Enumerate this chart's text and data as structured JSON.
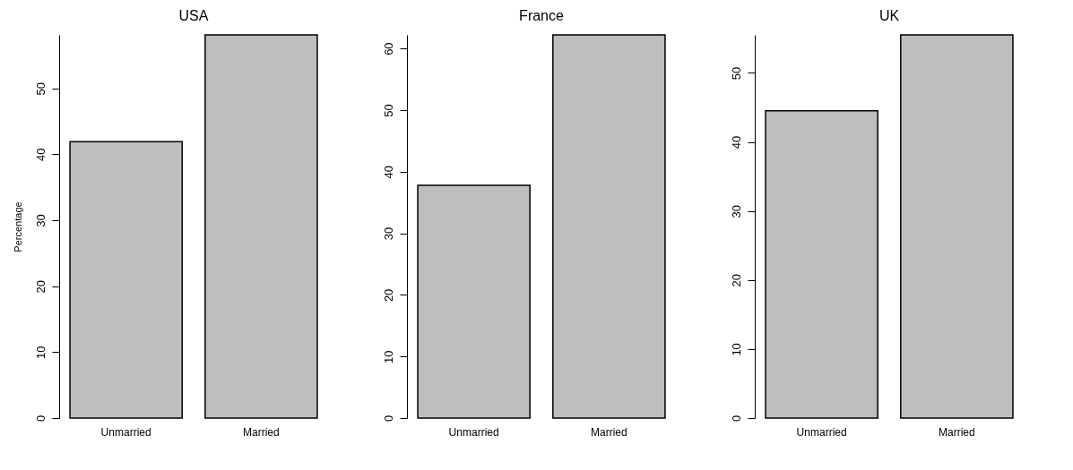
{
  "chart_data": [
    {
      "type": "bar",
      "title": "USA",
      "ylabel": "Percentage",
      "categories": [
        "Unmarried",
        "Married"
      ],
      "values": [
        41.9,
        58.1
      ],
      "color": "#bebebe",
      "ylim": [
        0,
        58.1
      ],
      "yticks": [
        0,
        10,
        20,
        30,
        40,
        50
      ]
    },
    {
      "type": "bar",
      "title": "France",
      "categories": [
        "Unmarried",
        "Married"
      ],
      "values": [
        37.8,
        62.2
      ],
      "color": "#bebebe",
      "ylim": [
        0,
        62.2
      ],
      "yticks": [
        0,
        10,
        20,
        30,
        40,
        50,
        60
      ]
    },
    {
      "type": "bar",
      "title": "UK",
      "categories": [
        "Unmarried",
        "Married"
      ],
      "values": [
        44.5,
        55.5
      ],
      "color": "#bebebe",
      "ylim": [
        0,
        55.5
      ],
      "yticks": [
        0,
        10,
        20,
        30,
        40,
        50
      ]
    }
  ]
}
